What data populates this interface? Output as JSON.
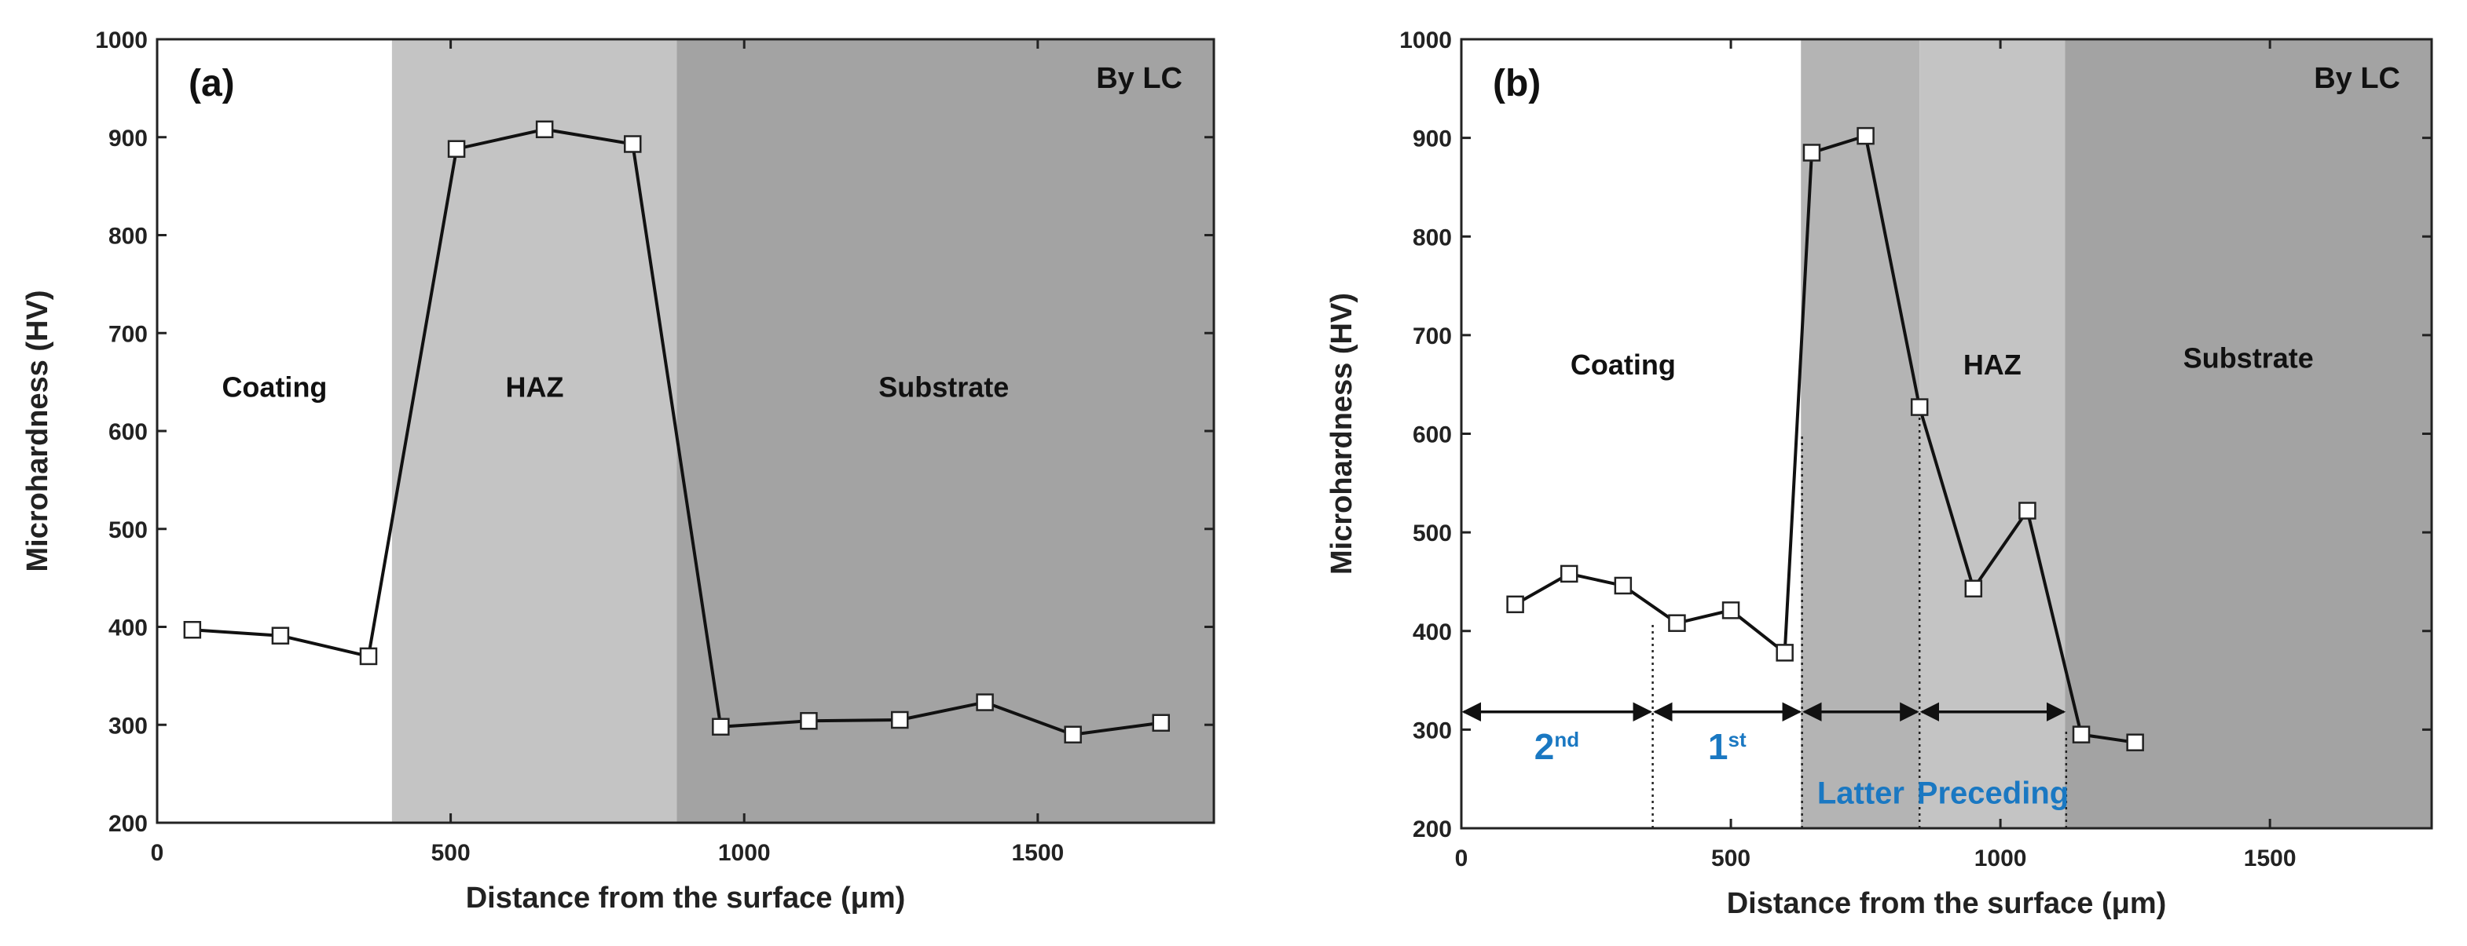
{
  "chart_data": [
    {
      "type": "line",
      "panel_label": "(a)",
      "corner_label": "By LC",
      "xlabel": "Distance from the surface (μm)",
      "ylabel": "Microhardness (HV)",
      "xlim": [
        0,
        1800
      ],
      "ylim": [
        200,
        1000
      ],
      "xticks": [
        0,
        500,
        1000,
        1500
      ],
      "yticks": [
        200,
        300,
        400,
        500,
        600,
        700,
        800,
        900,
        1000
      ],
      "regions": [
        {
          "name": "Coating",
          "x_range": [
            0,
            400
          ],
          "color": "#ffffff"
        },
        {
          "name": "HAZ",
          "x_range": [
            400,
            885
          ],
          "color": "#c4c4c4"
        },
        {
          "name": "Substrate",
          "x_range": [
            885,
            1800
          ],
          "color": "#a3a3a3"
        }
      ],
      "region_labels": [
        {
          "text": "Coating",
          "x": 200,
          "y": 635
        },
        {
          "text": "HAZ",
          "x": 643,
          "y": 635
        },
        {
          "text": "Substrate",
          "x": 1340,
          "y": 635
        }
      ],
      "series": [
        {
          "name": "Microhardness",
          "x": [
            60,
            210,
            360,
            510,
            660,
            810,
            960,
            1110,
            1265,
            1410,
            1560,
            1710
          ],
          "y": [
            397,
            391,
            370,
            888,
            908,
            893,
            298,
            304,
            305,
            323,
            290,
            302
          ]
        }
      ],
      "annotations": []
    },
    {
      "type": "line",
      "panel_label": "(b)",
      "corner_label": "By LC",
      "xlabel": "Distance from the surface (μm)",
      "ylabel": "Microhardness (HV)",
      "xlim": [
        0,
        1800
      ],
      "ylim": [
        200,
        1000
      ],
      "xticks": [
        0,
        500,
        1000,
        1500
      ],
      "yticks": [
        200,
        300,
        400,
        500,
        600,
        700,
        800,
        900,
        1000
      ],
      "regions": [
        {
          "name": "Coating",
          "x_range": [
            0,
            630
          ],
          "color": "#ffffff"
        },
        {
          "name": "HAZ latter",
          "x_range": [
            630,
            850
          ],
          "color": "#b4b4b4"
        },
        {
          "name": "HAZ preceding",
          "x_range": [
            850,
            1120
          ],
          "color": "#c4c4c4"
        },
        {
          "name": "Substrate",
          "x_range": [
            1120,
            1800
          ],
          "color": "#a3a3a3"
        }
      ],
      "region_labels": [
        {
          "text": "Coating",
          "x": 300,
          "y": 660
        },
        {
          "text": "HAZ",
          "x": 985,
          "y": 660
        },
        {
          "text": "Substrate",
          "x": 1460,
          "y": 667
        }
      ],
      "series": [
        {
          "name": "Microhardness",
          "x": [
            100,
            200,
            300,
            400,
            500,
            600,
            650,
            750,
            850,
            950,
            1050,
            1150,
            1250
          ],
          "y": [
            427,
            458,
            446,
            408,
            421,
            378,
            885,
            902,
            627,
            443,
            522,
            295,
            287
          ]
        }
      ],
      "annotations": [
        {
          "type": "dotted_vline",
          "x": 355,
          "y_range": [
            200,
            410
          ]
        },
        {
          "type": "dotted_vline",
          "x": 632,
          "y_range": [
            200,
            600
          ]
        },
        {
          "type": "dotted_vline",
          "x": 850,
          "y_range": [
            200,
            627
          ]
        },
        {
          "type": "dotted_vline",
          "x": 1122,
          "y_range": [
            200,
            300
          ]
        },
        {
          "type": "double_arrow",
          "x_range": [
            0,
            355
          ],
          "y": 318,
          "label": "2",
          "superscript": "nd",
          "label_x": 177,
          "label_y": 270
        },
        {
          "type": "double_arrow",
          "x_range": [
            355,
            632
          ],
          "y": 318,
          "label": "1",
          "superscript": "st",
          "label_x": 493,
          "label_y": 270
        },
        {
          "type": "double_arrow",
          "x_range": [
            632,
            850
          ],
          "y": 318,
          "label": "Latter",
          "superscript": "",
          "label_x": 741,
          "label_y": 225
        },
        {
          "type": "double_arrow",
          "x_range": [
            850,
            1122
          ],
          "y": 318,
          "label": "Preceding",
          "superscript": "",
          "label_x": 986,
          "label_y": 225
        }
      ]
    }
  ]
}
